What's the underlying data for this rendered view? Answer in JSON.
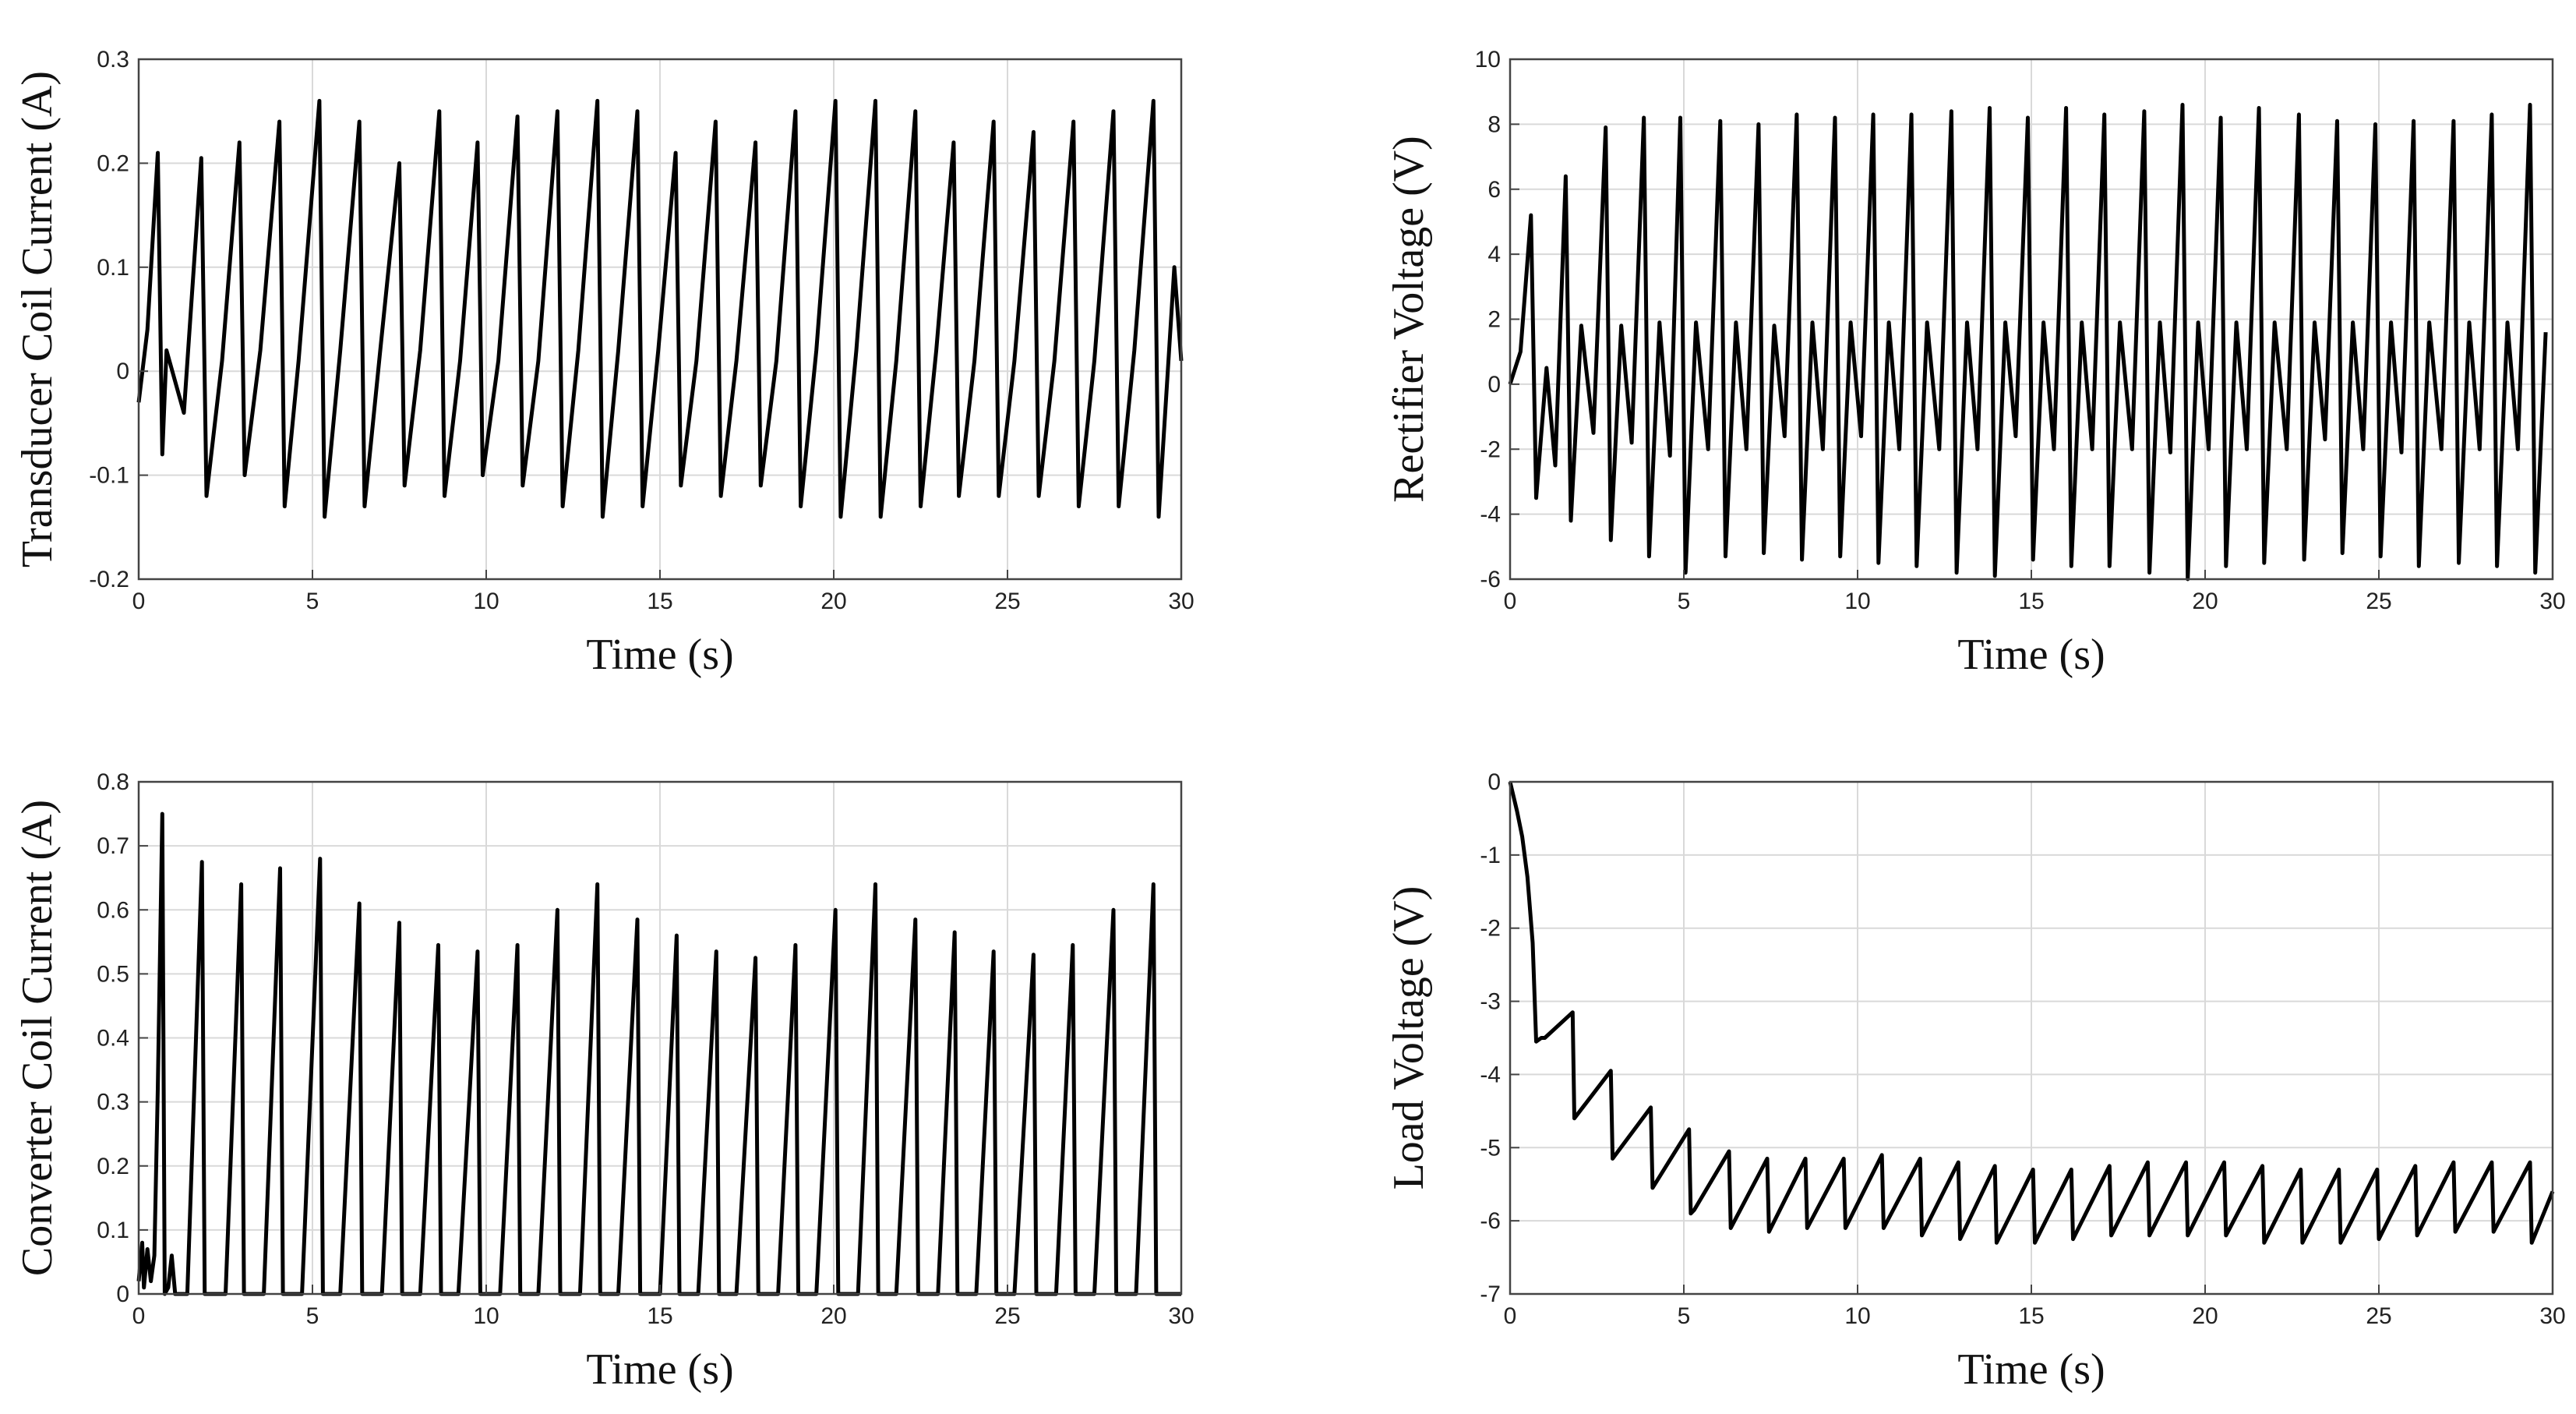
{
  "chart_data": [
    {
      "id": "transducer",
      "type": "line",
      "title": "",
      "xlabel": "Time (s)",
      "ylabel": "Transducer Coil Current (A)",
      "xlim": [
        0,
        30
      ],
      "ylim": [
        -0.2,
        0.3
      ],
      "xticks": [
        0,
        5,
        10,
        15,
        20,
        25,
        30
      ],
      "yticks": [
        -0.2,
        -0.1,
        0,
        0.1,
        0.2,
        0.3
      ],
      "ytick_labels": [
        "-0.2",
        "-0.1",
        "0",
        "0.1",
        "0.2",
        "0.3"
      ],
      "grid": true,
      "x": [
        0,
        0.25,
        0.55,
        0.68,
        0.8,
        1.3,
        1.8,
        1.95,
        2.4,
        2.9,
        3.05,
        3.5,
        4.05,
        4.2,
        4.6,
        5.2,
        5.35,
        5.8,
        6.35,
        6.5,
        6.95,
        7.5,
        7.65,
        8.1,
        8.65,
        8.8,
        9.25,
        9.75,
        9.9,
        10.35,
        10.9,
        11.05,
        11.5,
        12.05,
        12.2,
        12.65,
        13.2,
        13.35,
        13.8,
        14.35,
        14.5,
        14.95,
        15.45,
        15.6,
        16.05,
        16.6,
        16.75,
        17.2,
        17.75,
        17.9,
        18.35,
        18.9,
        19.05,
        19.5,
        20.05,
        20.2,
        20.65,
        21.2,
        21.35,
        21.8,
        22.35,
        22.5,
        22.95,
        23.45,
        23.6,
        24.05,
        24.6,
        24.75,
        25.2,
        25.75,
        25.9,
        26.35,
        26.9,
        27.05,
        27.5,
        28.05,
        28.2,
        28.65,
        29.2,
        29.35,
        29.8,
        30
      ],
      "y": [
        -0.03,
        0.04,
        0.21,
        -0.08,
        0.02,
        -0.04,
        0.205,
        -0.12,
        0.01,
        0.22,
        -0.1,
        0.02,
        0.24,
        -0.13,
        0.01,
        0.26,
        -0.14,
        0.02,
        0.24,
        -0.13,
        0.02,
        0.2,
        -0.11,
        0.02,
        0.25,
        -0.12,
        0.01,
        0.22,
        -0.1,
        0.01,
        0.245,
        -0.11,
        0.01,
        0.25,
        -0.13,
        0.02,
        0.26,
        -0.14,
        0.02,
        0.25,
        -0.13,
        0.02,
        0.21,
        -0.11,
        0.01,
        0.24,
        -0.12,
        0.01,
        0.22,
        -0.11,
        0.01,
        0.25,
        -0.13,
        0.02,
        0.26,
        -0.14,
        0.02,
        0.26,
        -0.14,
        0.01,
        0.25,
        -0.13,
        0.02,
        0.22,
        -0.12,
        0.01,
        0.24,
        -0.12,
        0.01,
        0.23,
        -0.12,
        0.01,
        0.24,
        -0.13,
        0.01,
        0.25,
        -0.13,
        0.02,
        0.26,
        -0.14,
        0.1,
        0.01
      ]
    },
    {
      "id": "rectifier",
      "type": "line",
      "title": "",
      "xlabel": "Time (s)",
      "ylabel": "Rectifier Voltage (V)",
      "xlim": [
        0,
        30
      ],
      "ylim": [
        -6,
        10
      ],
      "xticks": [
        0,
        5,
        10,
        15,
        20,
        25,
        30
      ],
      "yticks": [
        -6,
        -4,
        -2,
        0,
        2,
        4,
        6,
        8,
        10
      ],
      "ytick_labels": [
        "-6",
        "-4",
        "-2",
        "0",
        "2",
        "4",
        "6",
        "8",
        "10"
      ],
      "grid": true,
      "x": [
        0,
        0.3,
        0.6,
        0.75,
        1.05,
        1.3,
        1.6,
        1.75,
        2.05,
        2.4,
        2.75,
        2.9,
        3.2,
        3.5,
        3.85,
        4.0,
        4.3,
        4.6,
        4.9,
        5.05,
        5.35,
        5.7,
        6.05,
        6.2,
        6.5,
        6.8,
        7.15,
        7.3,
        7.6,
        7.9,
        8.25,
        8.4,
        8.7,
        9.0,
        9.35,
        9.5,
        9.8,
        10.1,
        10.45,
        10.6,
        10.9,
        11.2,
        11.55,
        11.7,
        12.0,
        12.35,
        12.7,
        12.85,
        13.15,
        13.45,
        13.8,
        13.95,
        14.25,
        14.55,
        14.9,
        15.05,
        15.35,
        15.65,
        16.0,
        16.15,
        16.45,
        16.75,
        17.1,
        17.25,
        17.55,
        17.9,
        18.25,
        18.4,
        18.7,
        19.0,
        19.35,
        19.5,
        19.8,
        20.1,
        20.45,
        20.6,
        20.9,
        21.2,
        21.55,
        21.7,
        22.0,
        22.35,
        22.7,
        22.85,
        23.15,
        23.45,
        23.8,
        23.95,
        24.25,
        24.55,
        24.9,
        25.05,
        25.35,
        25.65,
        26.0,
        26.15,
        26.45,
        26.8,
        27.15,
        27.3,
        27.6,
        27.9,
        28.25,
        28.4,
        28.7,
        29.0,
        29.35,
        29.5,
        29.8
      ],
      "y": [
        0,
        1,
        5.2,
        -3.5,
        0.5,
        -2.5,
        6.4,
        -4.2,
        1.8,
        -1.5,
        7.9,
        -4.8,
        1.8,
        -1.8,
        8.2,
        -5.3,
        1.9,
        -2.2,
        8.2,
        -5.8,
        1.9,
        -2.0,
        8.1,
        -5.3,
        1.9,
        -2.0,
        8.0,
        -5.2,
        1.8,
        -1.6,
        8.3,
        -5.4,
        1.9,
        -2.0,
        8.2,
        -5.3,
        1.9,
        -1.6,
        8.3,
        -5.5,
        1.9,
        -2.0,
        8.3,
        -5.6,
        1.9,
        -2.0,
        8.4,
        -5.8,
        1.9,
        -2.0,
        8.5,
        -5.9,
        1.9,
        -1.6,
        8.2,
        -5.4,
        1.9,
        -2.0,
        8.5,
        -5.6,
        1.9,
        -2.0,
        8.3,
        -5.6,
        1.9,
        -2.0,
        8.4,
        -5.8,
        1.9,
        -2.1,
        8.6,
        -6.0,
        1.9,
        -2.0,
        8.2,
        -5.6,
        1.9,
        -2.0,
        8.5,
        -5.5,
        1.9,
        -2.0,
        8.3,
        -5.4,
        1.9,
        -1.7,
        8.1,
        -5.2,
        1.9,
        -2.0,
        8.0,
        -5.3,
        1.9,
        -2.1,
        8.1,
        -5.6,
        1.9,
        -2.0,
        8.1,
        -5.5,
        1.9,
        -2.0,
        8.3,
        -5.6,
        1.9,
        -2.0,
        8.6,
        -5.8,
        1.6
      ]
    },
    {
      "id": "converter",
      "type": "line",
      "title": "",
      "xlabel": "Time (s)",
      "ylabel": "Converter Coil Current (A)",
      "xlim": [
        0,
        30
      ],
      "ylim": [
        0,
        0.8
      ],
      "xticks": [
        0,
        5,
        10,
        15,
        20,
        25,
        30
      ],
      "yticks": [
        0,
        0.1,
        0.2,
        0.3,
        0.4,
        0.5,
        0.6,
        0.7,
        0.8
      ],
      "ytick_labels": [
        "0",
        "0.1",
        "0.2",
        "0.3",
        "0.4",
        "0.5",
        "0.6",
        "0.7",
        "0.8"
      ],
      "grid": true,
      "x": [
        0,
        0.1,
        0.15,
        0.25,
        0.35,
        0.45,
        0.55,
        0.68,
        0.75,
        0.85,
        0.95,
        1.05,
        1.4,
        1.82,
        1.9,
        2.5,
        2.95,
        3.03,
        3.6,
        4.07,
        4.15,
        4.7,
        5.22,
        5.3,
        5.8,
        6.35,
        6.43,
        7.0,
        7.5,
        7.58,
        8.1,
        8.62,
        8.7,
        9.2,
        9.75,
        9.83,
        10.4,
        10.9,
        10.98,
        11.5,
        12.05,
        12.13,
        12.7,
        13.2,
        13.28,
        13.8,
        14.35,
        14.43,
        15.0,
        15.48,
        15.56,
        16.1,
        16.62,
        16.7,
        17.2,
        17.75,
        17.83,
        18.4,
        18.9,
        18.98,
        19.5,
        20.05,
        20.13,
        20.7,
        21.2,
        21.28,
        21.8,
        22.35,
        22.43,
        23.0,
        23.48,
        23.56,
        24.1,
        24.6,
        24.68,
        25.2,
        25.75,
        25.83,
        26.4,
        26.88,
        26.96,
        27.5,
        28.05,
        28.13,
        28.7,
        29.2,
        29.28,
        29.8,
        30
      ],
      "y": [
        0.02,
        0.08,
        0.01,
        0.07,
        0.02,
        0.06,
        0.32,
        0.75,
        0.0,
        0.01,
        0.06,
        0.0,
        0.0,
        0.675,
        0.0,
        0.0,
        0.64,
        0.0,
        0.0,
        0.665,
        0.0,
        0.0,
        0.68,
        0.0,
        0.0,
        0.61,
        0.0,
        0.0,
        0.58,
        0.0,
        0.0,
        0.545,
        0.0,
        0.0,
        0.535,
        0.0,
        0.0,
        0.545,
        0.0,
        0.0,
        0.6,
        0.0,
        0.0,
        0.64,
        0.0,
        0.0,
        0.585,
        0.0,
        0.0,
        0.56,
        0.0,
        0.0,
        0.535,
        0.0,
        0.0,
        0.525,
        0.0,
        0.0,
        0.545,
        0.0,
        0.0,
        0.6,
        0.0,
        0.0,
        0.64,
        0.0,
        0.0,
        0.585,
        0.0,
        0.0,
        0.565,
        0.0,
        0.0,
        0.535,
        0.0,
        0.0,
        0.53,
        0.0,
        0.0,
        0.545,
        0.0,
        0.0,
        0.6,
        0.0,
        0.0,
        0.64,
        0.0,
        0.0,
        0.0
      ]
    },
    {
      "id": "load",
      "type": "line",
      "title": "",
      "xlabel": "Time (s)",
      "ylabel": "Load Voltage (V)",
      "xlim": [
        0,
        30
      ],
      "ylim": [
        -7,
        0
      ],
      "xticks": [
        0,
        5,
        10,
        15,
        20,
        25,
        30
      ],
      "yticks": [
        -7,
        -6,
        -5,
        -4,
        -3,
        -2,
        -1,
        0
      ],
      "ytick_labels": [
        "-7",
        "-6",
        "-5",
        "-4",
        "-3",
        "-2",
        "-1",
        "0"
      ],
      "grid": true,
      "x": [
        0,
        0.2,
        0.35,
        0.5,
        0.65,
        0.75,
        0.9,
        1.0,
        1.8,
        1.85,
        2.9,
        2.95,
        4.05,
        4.1,
        5.15,
        5.2,
        5.3,
        6.3,
        6.35,
        7.4,
        7.45,
        8.5,
        8.55,
        9.6,
        9.65,
        10.7,
        10.75,
        11.8,
        11.85,
        12.9,
        12.95,
        13.95,
        14.0,
        15.05,
        15.1,
        16.15,
        16.2,
        17.25,
        17.3,
        18.35,
        18.4,
        19.45,
        19.5,
        20.55,
        20.6,
        21.65,
        21.7,
        22.75,
        22.8,
        23.85,
        23.9,
        24.95,
        25.0,
        26.05,
        26.1,
        27.15,
        27.2,
        28.25,
        28.3,
        29.35,
        29.4,
        30
      ],
      "y": [
        0,
        -0.4,
        -0.75,
        -1.3,
        -2.2,
        -3.55,
        -3.5,
        -3.5,
        -3.15,
        -4.6,
        -3.95,
        -5.15,
        -4.45,
        -5.55,
        -4.75,
        -5.9,
        -5.85,
        -5.05,
        -6.1,
        -5.15,
        -6.15,
        -5.15,
        -6.1,
        -5.15,
        -6.1,
        -5.1,
        -6.1,
        -5.15,
        -6.2,
        -5.2,
        -6.25,
        -5.25,
        -6.3,
        -5.3,
        -6.3,
        -5.3,
        -6.25,
        -5.25,
        -6.2,
        -5.2,
        -6.2,
        -5.2,
        -6.2,
        -5.2,
        -6.2,
        -5.25,
        -6.3,
        -5.3,
        -6.3,
        -5.3,
        -6.3,
        -5.3,
        -6.25,
        -5.25,
        -6.2,
        -5.2,
        -6.15,
        -5.2,
        -6.15,
        -5.2,
        -6.3,
        -5.6
      ]
    }
  ]
}
